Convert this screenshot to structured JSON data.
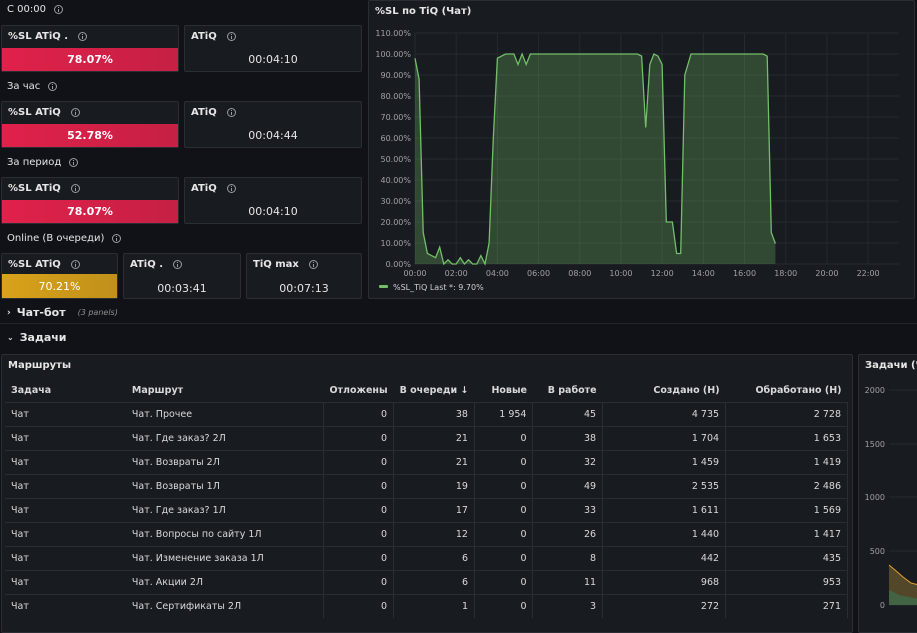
{
  "rows": {
    "r1": "С 00:00",
    "r2": "За час",
    "r3": "За период",
    "r4": "Online (В очереди)"
  },
  "stats": {
    "s1": {
      "title": "%SL ATiQ .",
      "value": "78.07%",
      "level": 78.07,
      "color": "#e0214a"
    },
    "s2": {
      "title": "ATiQ",
      "value": "00:04:10"
    },
    "s3": {
      "title": "%SL ATiQ",
      "value": "52.78%",
      "level": 52.78,
      "color": "#e0214a"
    },
    "s4": {
      "title": "ATiQ",
      "value": "00:04:44"
    },
    "s5": {
      "title": "%SL ATiQ",
      "value": "78.07%",
      "level": 78.07,
      "color": "#e0214a"
    },
    "s6": {
      "title": "ATiQ",
      "value": "00:04:10"
    },
    "s7": {
      "title": "%SL ATiQ",
      "value": "70.21%",
      "level": 70.21,
      "color": "#d9a21a"
    },
    "s8": {
      "title": "ATiQ .",
      "value": "00:03:41"
    },
    "s9": {
      "title": "TiQ max",
      "value": "00:07:13"
    }
  },
  "collapsed": {
    "chatbot": {
      "label": "Чат-бот",
      "sub": "(3 panels)"
    },
    "tasks": {
      "label": "Задачи"
    }
  },
  "chart_data": {
    "type": "area",
    "title": "%SL по TiQ (Чат)",
    "y_ticks": [
      "110.00%",
      "100.00%",
      "90.00%",
      "80.00%",
      "70.00%",
      "60.00%",
      "50.00%",
      "40.00%",
      "30.00%",
      "20.00%",
      "10.00%",
      "0.00%"
    ],
    "x_ticks": [
      "00:00",
      "02:00",
      "04:00",
      "06:00",
      "08:00",
      "10:00",
      "12:00",
      "14:00",
      "16:00",
      "18:00",
      "20:00",
      "22:00"
    ],
    "ylim": [
      0,
      110
    ],
    "xlim": [
      0,
      23.5
    ],
    "series": [
      {
        "name": "%SL_TiQ",
        "color": "#73bf69",
        "points": [
          [
            0.0,
            98
          ],
          [
            0.2,
            88
          ],
          [
            0.4,
            15
          ],
          [
            0.6,
            5
          ],
          [
            0.8,
            4
          ],
          [
            1.0,
            3
          ],
          [
            1.2,
            8
          ],
          [
            1.4,
            0
          ],
          [
            1.6,
            2
          ],
          [
            1.8,
            0
          ],
          [
            2.0,
            0
          ],
          [
            2.2,
            3
          ],
          [
            2.4,
            0
          ],
          [
            2.6,
            2
          ],
          [
            2.8,
            0
          ],
          [
            3.0,
            0
          ],
          [
            3.2,
            4
          ],
          [
            3.4,
            0
          ],
          [
            3.6,
            10
          ],
          [
            3.8,
            60
          ],
          [
            4.0,
            98
          ],
          [
            4.4,
            100
          ],
          [
            4.8,
            100
          ],
          [
            5.0,
            95
          ],
          [
            5.2,
            100
          ],
          [
            5.4,
            95
          ],
          [
            5.6,
            100
          ],
          [
            6.0,
            100
          ],
          [
            7.0,
            100
          ],
          [
            8.0,
            100
          ],
          [
            9.0,
            100
          ],
          [
            10.0,
            100
          ],
          [
            10.8,
            100
          ],
          [
            11.0,
            99
          ],
          [
            11.2,
            65
          ],
          [
            11.4,
            95
          ],
          [
            11.6,
            100
          ],
          [
            11.8,
            99
          ],
          [
            12.0,
            95
          ],
          [
            12.2,
            20
          ],
          [
            12.5,
            20
          ],
          [
            12.7,
            5
          ],
          [
            12.9,
            5
          ],
          [
            13.1,
            90
          ],
          [
            13.4,
            100
          ],
          [
            14.0,
            100
          ],
          [
            15.0,
            100
          ],
          [
            16.0,
            100
          ],
          [
            16.9,
            100
          ],
          [
            17.1,
            99
          ],
          [
            17.3,
            15
          ],
          [
            17.5,
            9.7
          ]
        ]
      }
    ],
    "legend": {
      "name": "%SL_TiQ",
      "stat": "Last *: 9.70%"
    }
  },
  "table": {
    "title": "Маршруты",
    "headers": [
      "Задача",
      "Маршрут",
      "Отложены",
      "В очереди ↓",
      "Новые",
      "В работе",
      "Создано (Н)",
      "Обработано (Н)"
    ],
    "rows": [
      [
        "Чат",
        "Чат. Прочее",
        "0",
        "38",
        "1 954",
        "45",
        "4 735",
        "2 728"
      ],
      [
        "Чат",
        "Чат. Где заказ? 2Л",
        "0",
        "21",
        "0",
        "38",
        "1 704",
        "1 653"
      ],
      [
        "Чат",
        "Чат. Возвраты 2Л",
        "0",
        "21",
        "0",
        "32",
        "1 459",
        "1 419"
      ],
      [
        "Чат",
        "Чат. Возвраты 1Л",
        "0",
        "19",
        "0",
        "49",
        "2 535",
        "2 486"
      ],
      [
        "Чат",
        "Чат. Где заказ? 1Л",
        "0",
        "17",
        "0",
        "33",
        "1 611",
        "1 569"
      ],
      [
        "Чат",
        "Чат. Вопросы по сайту 1Л",
        "0",
        "12",
        "0",
        "26",
        "1 440",
        "1 417"
      ],
      [
        "Чат",
        "Чат. Изменение заказа 1Л",
        "0",
        "6",
        "0",
        "8",
        "442",
        "435"
      ],
      [
        "Чат",
        "Чат. Акции 2Л",
        "0",
        "6",
        "0",
        "11",
        "968",
        "953"
      ],
      [
        "Чат",
        "Чат. Сертификаты 2Л",
        "0",
        "1",
        "0",
        "3",
        "272",
        "271"
      ]
    ]
  },
  "side_panel": {
    "title": "Задачи (Чат",
    "y_ticks": [
      "2000",
      "1500",
      "1000",
      "500",
      "0"
    ]
  }
}
